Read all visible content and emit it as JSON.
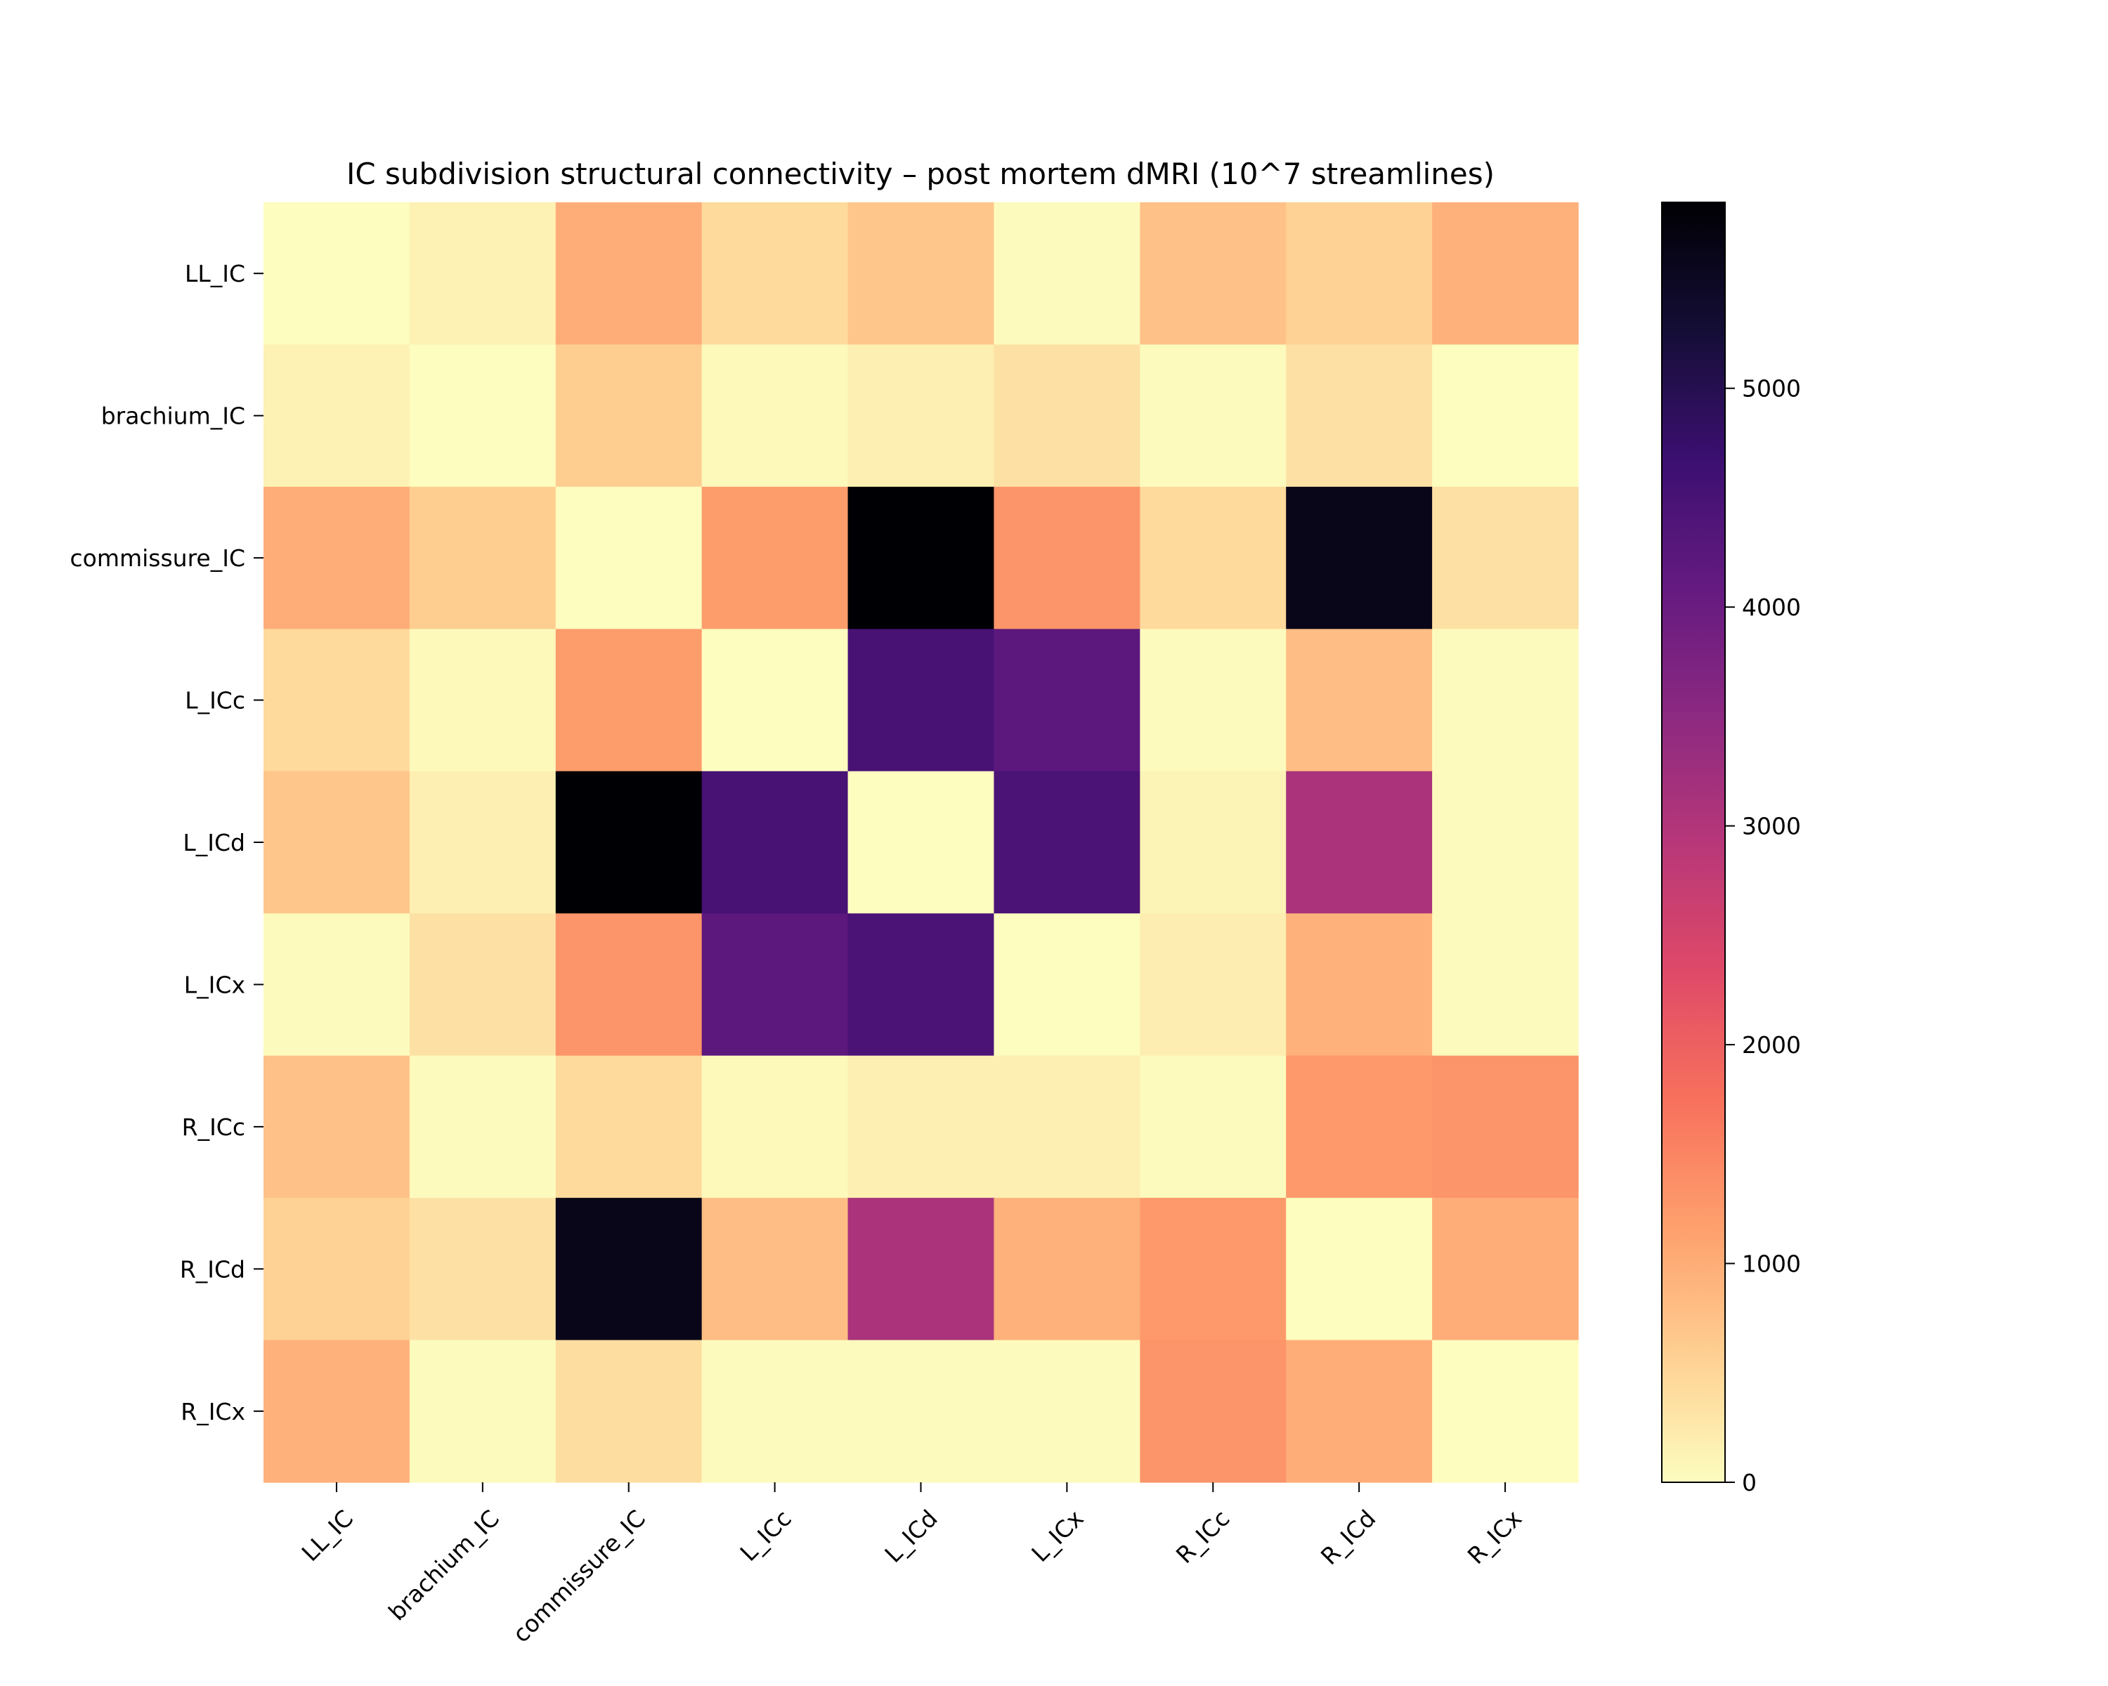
{
  "chart_data": {
    "type": "heatmap",
    "title": "IC subdivision structural connectivity – post mortem dMRI (10^7 streamlines)",
    "xlabel": "",
    "ylabel": "",
    "x_categories": [
      "LL_IC",
      "brachium_IC",
      "commissure_IC",
      "L_ICc",
      "L_ICd",
      "L_ICx",
      "R_ICc",
      "R_ICd",
      "R_ICx"
    ],
    "y_categories": [
      "LL_IC",
      "brachium_IC",
      "commissure_IC",
      "L_ICc",
      "L_ICd",
      "L_ICx",
      "R_ICc",
      "R_ICd",
      "R_ICx"
    ],
    "values": [
      [
        0,
        150,
        1000,
        450,
        700,
        20,
        750,
        550,
        950
      ],
      [
        150,
        0,
        600,
        50,
        180,
        350,
        30,
        350,
        0
      ],
      [
        1000,
        600,
        0,
        1200,
        5850,
        1300,
        450,
        5600,
        350
      ],
      [
        450,
        50,
        1200,
        0,
        4500,
        4200,
        30,
        800,
        30
      ],
      [
        700,
        180,
        5850,
        4500,
        0,
        4450,
        120,
        3100,
        40
      ],
      [
        20,
        350,
        1300,
        4200,
        4450,
        0,
        200,
        950,
        40
      ],
      [
        750,
        30,
        450,
        50,
        180,
        180,
        40,
        1250,
        1300
      ],
      [
        550,
        350,
        5600,
        800,
        3100,
        950,
        1250,
        0,
        1000
      ],
      [
        950,
        30,
        400,
        30,
        20,
        20,
        1300,
        1000,
        0
      ]
    ],
    "colormap": "magma_r",
    "vmin": 0,
    "vmax": 5850,
    "colorbar_ticks": [
      0,
      1000,
      2000,
      3000,
      4000,
      5000
    ],
    "grid": false,
    "legend": "colorbar-right"
  }
}
